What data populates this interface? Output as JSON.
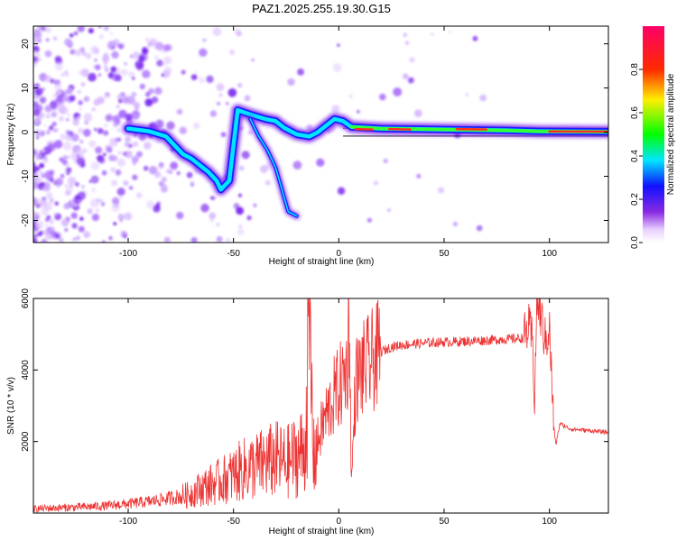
{
  "chart_data": [
    {
      "type": "heatmap",
      "title": "PAZ1.2025.255.19.30.G15",
      "xlabel": "Height of straight line (km)",
      "ylabel": "Frequency (Hz)",
      "xlim": [
        -145,
        128
      ],
      "ylim": [
        -25,
        24
      ],
      "xticks": [
        -100,
        -50,
        0,
        50,
        100
      ],
      "yticks": [
        20,
        10,
        0,
        -10,
        -20
      ],
      "tracks": [
        {
          "name": "main",
          "points": [
            [
              -100,
              0.8
            ],
            [
              -90,
              0.2
            ],
            [
              -82,
              -1
            ],
            [
              -78,
              -3
            ],
            [
              -74,
              -5
            ],
            [
              -70,
              -6
            ],
            [
              -66,
              -7.5
            ],
            [
              -62,
              -9
            ],
            [
              -58,
              -11
            ],
            [
              -56,
              -13
            ],
            [
              -52,
              -11
            ],
            [
              -48,
              5
            ],
            [
              -42,
              4
            ],
            [
              -35,
              3
            ],
            [
              -30,
              2.5
            ],
            [
              -26,
              1
            ],
            [
              -20,
              -0.5
            ],
            [
              -14,
              -1
            ],
            [
              -10,
              0
            ],
            [
              -6,
              1.5
            ],
            [
              -2,
              3
            ],
            [
              2,
              2.5
            ],
            [
              6,
              1.2
            ],
            [
              20,
              0.8
            ],
            [
              50,
              0.6
            ],
            [
              80,
              0.4
            ],
            [
              95,
              0.2
            ],
            [
              128,
              0.1
            ]
          ]
        },
        {
          "name": "secondary",
          "points": [
            [
              -42,
              3
            ],
            [
              -38,
              -1
            ],
            [
              -34,
              -4
            ],
            [
              -30,
              -8
            ],
            [
              -27,
              -13
            ],
            [
              -24,
              -18
            ],
            [
              -20,
              -19
            ]
          ]
        }
      ],
      "colorbar": {
        "label": "Normalized spectral amplitude",
        "min": 0.0,
        "max": 1.0,
        "ticks": [
          0.0,
          0.2,
          0.4,
          0.6,
          0.8
        ]
      }
    },
    {
      "type": "line",
      "xlabel": "Height of straight line (km)",
      "ylabel": "SNR (10 * v/v)",
      "xlim": [
        -145,
        128
      ],
      "ylim": [
        0,
        6000
      ],
      "xticks": [
        -100,
        -50,
        0,
        50,
        100
      ],
      "yticks": [
        2000,
        4000,
        6000
      ],
      "series": [
        {
          "name": "SNR",
          "color": "#ee3333",
          "x": [
            -145,
            -130,
            -110,
            -90,
            -80,
            -72,
            -65,
            -58,
            -52,
            -46,
            -40,
            -35,
            -30,
            -25,
            -20,
            -16,
            -14,
            -12,
            -10,
            -7,
            -4,
            -2,
            0,
            2,
            4,
            5,
            6,
            8,
            10,
            15,
            20,
            25,
            30,
            40,
            50,
            60,
            70,
            80,
            85,
            88,
            90,
            92,
            93,
            94,
            96,
            98,
            100,
            102,
            103,
            105,
            110,
            120,
            128
          ],
          "y": [
            120,
            150,
            200,
            320,
            420,
            500,
            700,
            850,
            1000,
            1200,
            1300,
            1400,
            1500,
            1400,
            1600,
            1800,
            5500,
            1500,
            2000,
            2600,
            3000,
            3300,
            3500,
            3700,
            4100,
            5700,
            800,
            3700,
            3900,
            4200,
            4500,
            4650,
            4700,
            4750,
            4780,
            4800,
            4830,
            4860,
            4880,
            4900,
            5200,
            4800,
            3100,
            6000,
            5500,
            4800,
            5200,
            2500,
            1900,
            2500,
            2350,
            2300,
            2250
          ]
        }
      ]
    }
  ]
}
